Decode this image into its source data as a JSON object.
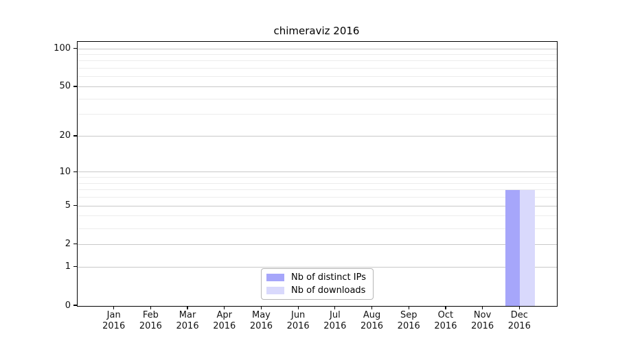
{
  "title": "chimeraviz 2016",
  "chart_data": {
    "type": "bar",
    "title": "chimeraviz 2016",
    "categories": [
      "Jan",
      "Feb",
      "Mar",
      "Apr",
      "May",
      "Jun",
      "Jul",
      "Aug",
      "Sep",
      "Oct",
      "Nov",
      "Dec"
    ],
    "category_sub_label": "2016",
    "series": [
      {
        "name": "Nb of distinct IPs",
        "color": "#a6a6fa",
        "values": [
          0,
          0,
          0,
          0,
          0,
          0,
          0,
          0,
          0,
          0,
          0,
          7
        ]
      },
      {
        "name": "Nb of downloads",
        "color": "#d9d9fc",
        "values": [
          0,
          0,
          0,
          0,
          0,
          0,
          0,
          0,
          0,
          0,
          0,
          7
        ]
      }
    ],
    "y_axis": {
      "scale": "log1p",
      "ticks": [
        0,
        1,
        2,
        5,
        10,
        20,
        50,
        100
      ],
      "minor_ticks": [
        3,
        4,
        6,
        7,
        8,
        9,
        30,
        40,
        60,
        70,
        80,
        90
      ],
      "ylim": [
        0,
        114
      ]
    },
    "x_axis": {
      "xlim_slots": 13
    },
    "grid": {
      "major_color": "#c8c8c8",
      "minor_color": "#ececec"
    },
    "legend": {
      "position": "lower center"
    },
    "colors": {
      "spine": "#000000",
      "background": "#ffffff"
    }
  }
}
